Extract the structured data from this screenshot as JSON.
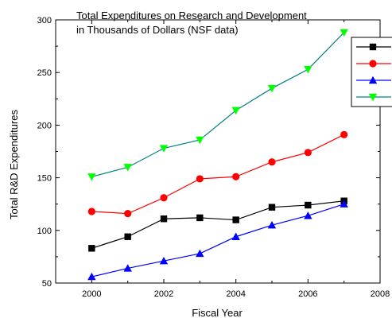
{
  "chart_data": {
    "type": "line",
    "title_lines": [
      "Total Expenditures on Research and Development",
      "in Thousands of Dollars (NSF data)"
    ],
    "xlabel": "Fiscal Year",
    "ylabel": "Total R&D Expenditures",
    "xlim": [
      1999,
      2008
    ],
    "ylim": [
      50,
      300
    ],
    "xticks": [
      2000,
      2002,
      2004,
      2006,
      2008
    ],
    "yticks": [
      50,
      100,
      150,
      200,
      250,
      300
    ],
    "grid": false,
    "legend_position": "top-right",
    "x": [
      2000,
      2001,
      2002,
      2003,
      2004,
      2005,
      2006,
      2007
    ],
    "series": [
      {
        "name": "",
        "color": "#000000",
        "line_color": "#000000",
        "marker": "square",
        "values": [
          83,
          94,
          111,
          112,
          110,
          122,
          124,
          128
        ]
      },
      {
        "name": "",
        "color": "#ff0000",
        "line_color": "#ff0000",
        "marker": "circle",
        "values": [
          118,
          116,
          131,
          149,
          151,
          165,
          174,
          191
        ]
      },
      {
        "name": "",
        "color": "#0000ff",
        "line_color": "#0000ff",
        "marker": "triangle-up",
        "values": [
          56,
          64,
          71,
          78,
          94,
          105,
          114,
          125
        ]
      },
      {
        "name": "",
        "color": "#00ff00",
        "line_color": "#008080",
        "marker": "triangle-down",
        "values": [
          151,
          160,
          178,
          186,
          214,
          235,
          253,
          288
        ]
      }
    ]
  }
}
